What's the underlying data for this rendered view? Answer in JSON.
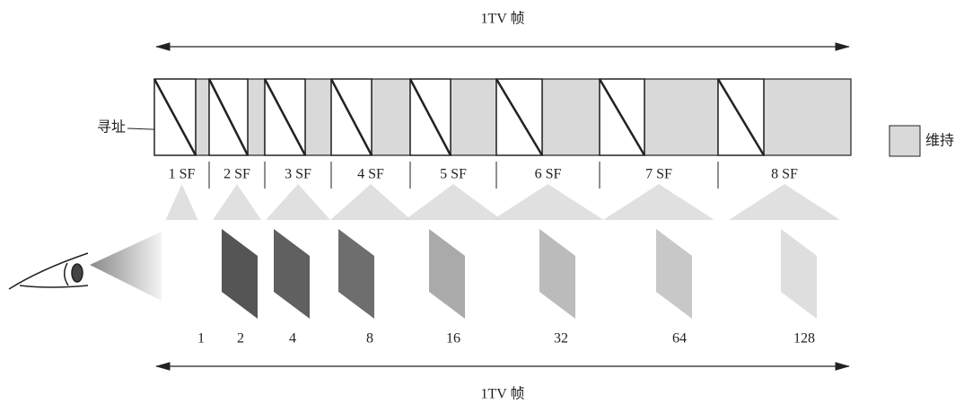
{
  "top_label": "1TV 帧",
  "bottom_label": "1TV 帧",
  "address_label": "寻址",
  "legend": {
    "label": "维持"
  },
  "subfields": [
    {
      "label": "1 SF",
      "weight": "1"
    },
    {
      "label": "2 SF",
      "weight": "2"
    },
    {
      "label": "3 SF",
      "weight": "4"
    },
    {
      "label": "4 SF",
      "weight": "8"
    },
    {
      "label": "5 SF",
      "weight": "16"
    },
    {
      "label": "6 SF",
      "weight": "32"
    },
    {
      "label": "7 SF",
      "weight": "64"
    },
    {
      "label": "8 SF",
      "weight": "128"
    }
  ]
}
